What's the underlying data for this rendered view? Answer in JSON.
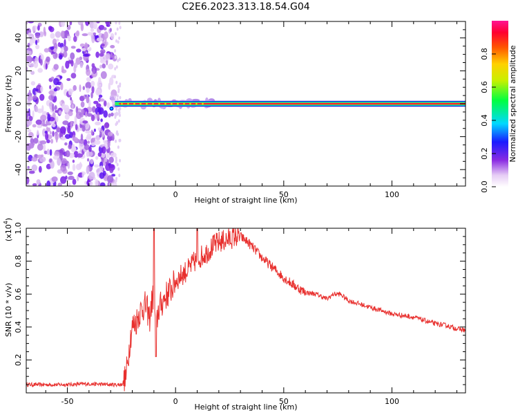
{
  "title": "C2E6.2023.313.18.54.G04",
  "chart_data": [
    {
      "type": "heatmap",
      "xlabel": "Height of straight line (km)",
      "ylabel": "Frequency (Hz)",
      "xlim": [
        -69,
        134
      ],
      "ylim": [
        -50,
        50
      ],
      "x_ticks": [
        -50,
        0,
        50,
        100
      ],
      "y_ticks": [
        -40,
        -20,
        0,
        20,
        40
      ],
      "noise_region_x": [
        -69,
        -28
      ],
      "carrier_frequency": 0,
      "carrier_start_x": -28,
      "colorbar": {
        "label": "Normalized spectral amplitude",
        "range": [
          0.0,
          1.0
        ],
        "ticks": [
          0.0,
          0.2,
          0.4,
          0.6,
          0.8
        ]
      }
    },
    {
      "type": "line",
      "xlabel": "Height of straight line (km)",
      "ylabel": "SNR (10 * v/v)",
      "y_multiplier_label": "(x10",
      "y_multiplier_exp": "4",
      "xlim": [
        -69,
        134
      ],
      "ylim": [
        0,
        1.0
      ],
      "x_ticks": [
        -50,
        0,
        50,
        100
      ],
      "y_ticks": [
        0.2,
        0.4,
        0.6,
        0.8,
        1.0
      ],
      "color": "#e8302e",
      "series": [
        {
          "x": [
            -69,
            -60,
            -50,
            -40,
            -30,
            -25,
            -23,
            -22,
            -21,
            -20,
            -19,
            -18,
            -17,
            -16,
            -15,
            -14,
            -13,
            -12,
            -11,
            -10,
            -9,
            -8,
            -5,
            -2,
            0,
            3,
            6,
            9,
            12,
            15,
            18,
            21,
            24,
            27,
            30,
            33,
            36,
            40,
            45,
            50,
            55,
            60,
            65,
            70,
            73,
            76,
            80,
            85,
            90,
            95,
            100,
            105,
            110,
            115,
            120,
            125,
            130,
            134
          ],
          "y": [
            0.05,
            0.05,
            0.05,
            0.055,
            0.05,
            0.05,
            0.09,
            0.2,
            0.33,
            0.4,
            0.42,
            0.44,
            0.48,
            0.5,
            0.52,
            0.53,
            0.5,
            0.45,
            0.55,
            0.6,
            0.38,
            0.5,
            0.58,
            0.63,
            0.68,
            0.72,
            0.75,
            0.8,
            0.83,
            0.86,
            0.9,
            0.92,
            0.93,
            0.95,
            0.95,
            0.92,
            0.88,
            0.82,
            0.76,
            0.7,
            0.65,
            0.61,
            0.6,
            0.57,
            0.6,
            0.6,
            0.56,
            0.54,
            0.52,
            0.5,
            0.48,
            0.47,
            0.46,
            0.44,
            0.42,
            0.41,
            0.39,
            0.38
          ]
        }
      ]
    }
  ]
}
